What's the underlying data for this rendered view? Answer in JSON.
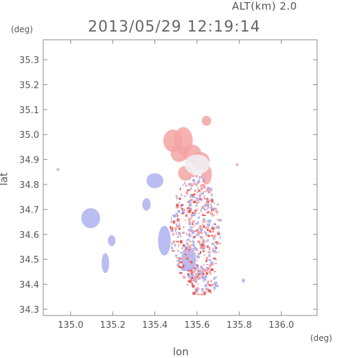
{
  "header": {
    "altitude_label": "ALT(km) 2.0",
    "timestamp": "2013/05/29 12:19:14"
  },
  "chart_data": {
    "type": "scatter",
    "title": "2013/05/29 12:19:14",
    "xlabel": "lon",
    "ylabel": "lat",
    "x_unit": "(deg)",
    "y_unit": "(deg)",
    "xlim": [
      134.87,
      136.17
    ],
    "ylim": [
      34.275,
      35.38
    ],
    "x_ticks": [
      "135.0",
      "135.2",
      "135.4",
      "135.6",
      "135.8",
      "136.0"
    ],
    "y_ticks": [
      "34.3",
      "34.4",
      "34.5",
      "34.6",
      "34.7",
      "34.8",
      "34.9",
      "35.0",
      "35.1",
      "35.2",
      "35.3"
    ],
    "grid": false,
    "colors": {
      "positive": "#f4a3a3",
      "negative": "#aeb2ee",
      "near_zero": "#f0eef2",
      "axis": "#888888"
    },
    "series": [
      {
        "color_group": "positive",
        "values": [
          {
            "lon": 135.485,
            "lat": 34.975,
            "rx": 0.045,
            "ry": 0.045
          },
          {
            "lon": 135.535,
            "lat": 34.975,
            "rx": 0.045,
            "ry": 0.055
          },
          {
            "lon": 135.575,
            "lat": 34.925,
            "rx": 0.045,
            "ry": 0.035
          },
          {
            "lon": 135.615,
            "lat": 34.895,
            "rx": 0.045,
            "ry": 0.035
          },
          {
            "lon": 135.515,
            "lat": 34.925,
            "rx": 0.04,
            "ry": 0.035
          },
          {
            "lon": 135.545,
            "lat": 34.845,
            "rx": 0.035,
            "ry": 0.03
          },
          {
            "lon": 135.645,
            "lat": 34.84,
            "rx": 0.025,
            "ry": 0.04
          },
          {
            "lon": 135.645,
            "lat": 35.055,
            "rx": 0.022,
            "ry": 0.02
          },
          {
            "lon": 135.79,
            "lat": 34.88,
            "rx": 0.006,
            "ry": 0.006
          }
        ]
      },
      {
        "color_group": "negative",
        "values": [
          {
            "lon": 135.095,
            "lat": 34.665,
            "rx": 0.045,
            "ry": 0.04
          },
          {
            "lon": 135.195,
            "lat": 34.575,
            "rx": 0.018,
            "ry": 0.022
          },
          {
            "lon": 135.165,
            "lat": 34.485,
            "rx": 0.018,
            "ry": 0.04
          },
          {
            "lon": 135.36,
            "lat": 34.72,
            "rx": 0.02,
            "ry": 0.025
          },
          {
            "lon": 135.445,
            "lat": 34.575,
            "rx": 0.03,
            "ry": 0.06
          },
          {
            "lon": 135.4,
            "lat": 34.815,
            "rx": 0.04,
            "ry": 0.03
          },
          {
            "lon": 134.94,
            "lat": 34.86,
            "rx": 0.006,
            "ry": 0.006
          },
          {
            "lon": 135.82,
            "lat": 34.415,
            "rx": 0.008,
            "ry": 0.008
          },
          {
            "lon": 135.56,
            "lat": 34.5,
            "rx": 0.035,
            "ry": 0.05
          }
        ]
      },
      {
        "color_group": "near_zero",
        "values": [
          {
            "lon": 135.6,
            "lat": 34.88,
            "rx": 0.06,
            "ry": 0.04
          }
        ]
      },
      {
        "color_group": "mixed",
        "values": [
          {
            "lon": 135.59,
            "lat": 34.62,
            "rx": 0.12,
            "ry": 0.22
          },
          {
            "lon": 135.62,
            "lat": 34.42,
            "rx": 0.08,
            "ry": 0.06
          }
        ]
      }
    ]
  }
}
